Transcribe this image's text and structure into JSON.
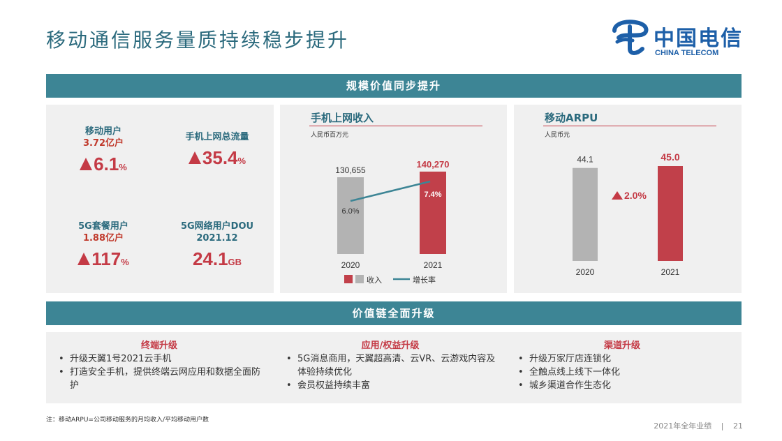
{
  "header": {
    "title": "移动通信服务量质持续稳步提升",
    "logo_cn": "中国电信",
    "logo_en": "CHINA TELECOM"
  },
  "section1": {
    "title": "规模价值同步提升"
  },
  "kpis": [
    {
      "title": "移动用户",
      "sub": "3.72亿户",
      "value": "6.1",
      "unit": "%"
    },
    {
      "title": "手机上网总流量",
      "sub": "",
      "value": "35.4",
      "unit": "%"
    },
    {
      "title": "5G套餐用户",
      "sub": "1.88亿户",
      "value": "117",
      "unit": "%"
    },
    {
      "title": "5G网络用户DOU",
      "sub": "2021.12",
      "value": "24.1",
      "unit": "GB"
    }
  ],
  "chart1": {
    "title": "手机上网收入",
    "unit": "人民币百万元",
    "legend_bar": "收入",
    "legend_line": "增长率",
    "growth_label": "6.0%"
  },
  "chart2": {
    "title": "移动ARPU",
    "unit": "人民币元",
    "growth_label": "2.0%"
  },
  "chart_data": [
    {
      "type": "bar",
      "title": "手机上网收入",
      "ylabel": "人民币百万元",
      "categories": [
        "2020",
        "2021"
      ],
      "series": [
        {
          "name": "收入",
          "values": [
            130655,
            140270
          ],
          "labels": [
            "130,655",
            "140,270"
          ]
        },
        {
          "name": "增长率",
          "type": "line",
          "values": [
            6.0,
            7.4
          ],
          "labels": [
            "6.0%",
            "7.4%"
          ]
        }
      ],
      "colors": [
        "#b3b3b3",
        "#c1404a"
      ],
      "line_color": "#3d8595"
    },
    {
      "type": "bar",
      "title": "移动ARPU",
      "ylabel": "人民币元",
      "categories": [
        "2020",
        "2021"
      ],
      "series": [
        {
          "values": [
            44.1,
            45.0
          ],
          "labels": [
            "44.1",
            "45.0"
          ]
        }
      ],
      "colors": [
        "#b3b3b3",
        "#c1404a"
      ]
    }
  ],
  "section2": {
    "title": "价值链全面升级"
  },
  "columns": [
    {
      "title": "终端升级",
      "items": [
        "升级天翼1号2021云手机",
        "打造安全手机，提供终端云网应用和数据全面防护"
      ]
    },
    {
      "title": "应用/权益升级",
      "items": [
        "5G消息商用，天翼超高清、云VR、云游戏内容及体验持续优化",
        "会员权益持续丰富"
      ]
    },
    {
      "title": "渠道升级",
      "items": [
        "升级万家厅店连锁化",
        "全触点线上线下一体化",
        "城乡渠道合作生态化"
      ]
    }
  ],
  "footnote": "注：移动ARPU=公司移动服务的月均收入/平均移动用户数",
  "footer": {
    "report": "2021年全年业绩",
    "separator": "|",
    "page": "21"
  },
  "colors": {
    "teal": "#3d8595",
    "red": "#c43a45",
    "gray": "#b3b3b3",
    "panel": "#f0f0f0"
  }
}
